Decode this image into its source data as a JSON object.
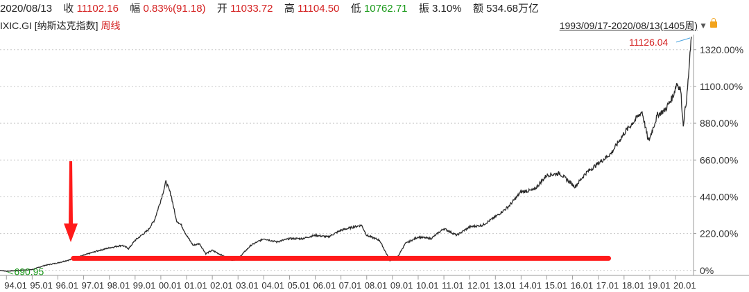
{
  "header": {
    "date": "2020/08/13",
    "close_label": "收",
    "close_value": "11102.16",
    "change_label": "幅",
    "change_value": "0.83%(91.18)",
    "open_label": "开",
    "open_value": "11033.72",
    "high_label": "高",
    "high_value": "11104.50",
    "low_label": "低",
    "low_value": "10762.71",
    "amplitude_label": "振",
    "amplitude_value": "3.10%",
    "amount_label": "额",
    "amount_value": "534.68万亿"
  },
  "subheader": {
    "code": "IXIC.GI",
    "name": "[纳斯达克指数]",
    "period": "周线",
    "range": "1993/09/17-2020/08/13(1405周)"
  },
  "colors": {
    "up": "#d42020",
    "down": "#1a9a1a",
    "line": "#2b2b2b",
    "support": "#ff1a1a"
  },
  "chart_data": {
    "type": "line",
    "title": "",
    "xlabel": "",
    "ylabel": "",
    "x_ticks": [
      "94.01",
      "95.01",
      "96.01",
      "97.01",
      "98.01",
      "99.01",
      "00.01",
      "01.01",
      "02.01",
      "03.01",
      "04.01",
      "05.01",
      "06.01",
      "07.01",
      "08.01",
      "09.01",
      "10.01",
      "11.01",
      "12.01",
      "13.01",
      "14.01",
      "15.01",
      "16.01",
      "17.01",
      "18.01",
      "19.01",
      "20.01"
    ],
    "y_ticks": [
      "0%",
      "220.00%",
      "440.00%",
      "660.00%",
      "880.00%",
      "1100.00%",
      "1320.00%"
    ],
    "y_tick_values": [
      0,
      220,
      440,
      660,
      880,
      1100,
      1320
    ],
    "ylim": [
      -30,
      1410
    ],
    "xlim": [
      1993.75,
      2020.7
    ],
    "series": [
      {
        "x": [
          1993.75,
          1994.0,
          1994.5,
          1995.0,
          1995.5,
          1996.0,
          1996.5,
          1997.0,
          1997.5,
          1998.0,
          1998.5,
          1998.75,
          1999.0,
          1999.5,
          1999.75,
          2000.0,
          2000.2,
          2000.4,
          2000.6,
          2000.8,
          2001.0,
          2001.25,
          2001.5,
          2001.75,
          2002.0,
          2002.5,
          2002.8,
          2003.0,
          2003.5,
          2004.0,
          2004.5,
          2005.0,
          2005.5,
          2006.0,
          2006.5,
          2007.0,
          2007.5,
          2007.8,
          2008.0,
          2008.5,
          2008.9,
          2009.2,
          2009.5,
          2010.0,
          2010.5,
          2011.0,
          2011.5,
          2012.0,
          2012.5,
          2013.0,
          2013.5,
          2014.0,
          2014.5,
          2015.0,
          2015.5,
          2016.1,
          2016.5,
          2017.0,
          2017.5,
          2018.0,
          2018.7,
          2018.95,
          2019.3,
          2019.6,
          2019.9,
          2020.05,
          2020.2,
          2020.3,
          2020.45,
          2020.62
        ],
        "y": [
          0,
          -5,
          0,
          5,
          30,
          45,
          65,
          90,
          115,
          135,
          150,
          130,
          180,
          240,
          300,
          420,
          530,
          450,
          300,
          270,
          210,
          150,
          160,
          100,
          120,
          80,
          60,
          70,
          150,
          190,
          170,
          190,
          190,
          210,
          200,
          240,
          260,
          270,
          210,
          180,
          60,
          80,
          160,
          200,
          190,
          250,
          210,
          260,
          270,
          320,
          380,
          470,
          480,
          570,
          580,
          500,
          580,
          640,
          700,
          820,
          950,
          770,
          930,
          960,
          1040,
          1120,
          1080,
          870,
          1050,
          1398
        ]
      }
    ],
    "annotations": {
      "max_label": "11126.04",
      "min_label": "690.95",
      "min_x": 1994.3,
      "max_x": 2020.62,
      "arrow_x": 1996.5,
      "support_x_start": 1996.6,
      "support_x_end": 2017.4,
      "support_y": 72
    }
  }
}
